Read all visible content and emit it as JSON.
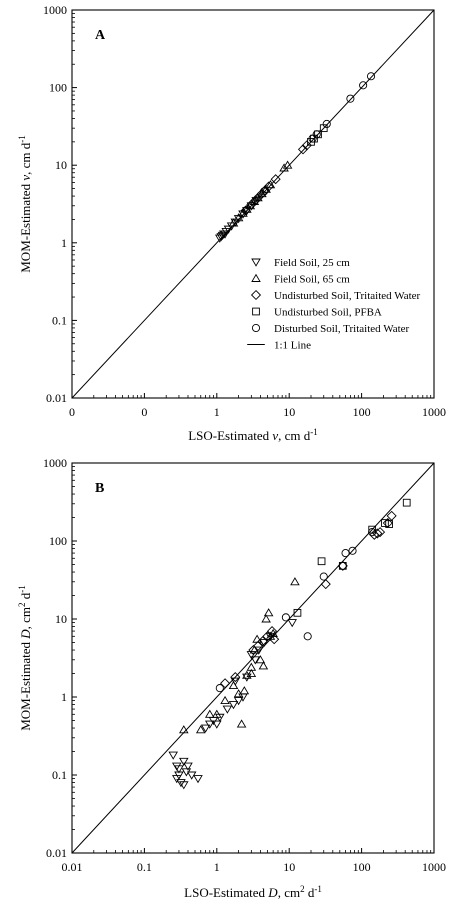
{
  "chart_data": [
    {
      "type": "scatter",
      "panel_label": "A",
      "xlabel": "LSO-Estimated v, cm d",
      "xlabel_parts": {
        "pre": "LSO-Estimated ",
        "italic": "v",
        "post": ", cm d",
        "sup": "-1"
      },
      "ylabel": "MOM-Estimated v, cm d",
      "ylabel_parts": {
        "pre": "MOM-Estimated ",
        "italic": "v",
        "post": ", cm d",
        "sup": "-1"
      },
      "scale": "log",
      "xticks": [
        "0",
        "0",
        "1",
        "10",
        "100",
        "1000"
      ],
      "yticks": [
        "0.01",
        "0.1",
        "1",
        "10",
        "100",
        "1000"
      ],
      "xlim": [
        0.01,
        1000
      ],
      "ylim": [
        0.01,
        1000
      ],
      "legend_position": "bottom-right",
      "legend": [
        {
          "label": "Field Soil, 25 cm",
          "marker": "triangle-down"
        },
        {
          "label": "Field Soil, 65 cm",
          "marker": "triangle-up"
        },
        {
          "label": "Undisturbed Soil, Tritaited Water",
          "marker": "diamond"
        },
        {
          "label": "Undisturbed Soil, PFBA",
          "marker": "square"
        },
        {
          "label": "Disturbed Soil, Tritaited Water",
          "marker": "circle"
        },
        {
          "label": "1:1 Line",
          "marker": "line"
        }
      ],
      "series": [
        {
          "name": "Field Soil, 25 cm",
          "marker": "triangle-down",
          "points": [
            [
              1.1,
              1.15
            ],
            [
              1.15,
              1.2
            ],
            [
              1.2,
              1.25
            ],
            [
              1.25,
              1.3
            ],
            [
              1.3,
              1.3
            ],
            [
              1.35,
              1.4
            ],
            [
              1.45,
              1.5
            ],
            [
              1.6,
              1.65
            ],
            [
              1.8,
              1.85
            ],
            [
              2.0,
              2.05
            ],
            [
              2.3,
              2.35
            ],
            [
              2.6,
              2.6
            ],
            [
              3.0,
              3.0
            ],
            [
              3.5,
              3.5
            ]
          ]
        },
        {
          "name": "Field Soil, 65 cm",
          "marker": "triangle-up",
          "points": [
            [
              1.7,
              1.8
            ],
            [
              2.0,
              2.1
            ],
            [
              2.3,
              2.4
            ],
            [
              2.6,
              2.7
            ],
            [
              2.9,
              3.0
            ],
            [
              3.3,
              3.4
            ],
            [
              3.7,
              3.8
            ],
            [
              4.2,
              4.3
            ],
            [
              4.8,
              4.9
            ],
            [
              5.5,
              5.6
            ],
            [
              8.5,
              9.2
            ],
            [
              9.5,
              10.0
            ]
          ]
        },
        {
          "name": "Undisturbed Soil, Tritaited Water",
          "marker": "diamond",
          "points": [
            [
              2.5,
              2.6
            ],
            [
              3.0,
              3.1
            ],
            [
              3.4,
              3.5
            ],
            [
              3.8,
              3.9
            ],
            [
              4.2,
              4.3
            ],
            [
              4.6,
              4.7
            ],
            [
              5.2,
              5.3
            ],
            [
              6.5,
              6.6
            ],
            [
              15.5,
              16.0
            ],
            [
              17.5,
              18.0
            ]
          ]
        },
        {
          "name": "Undisturbed Soil, PFBA",
          "marker": "square",
          "points": [
            [
              20.0,
              20.0
            ],
            [
              22.0,
              22.0
            ],
            [
              25.0,
              25.0
            ],
            [
              30.0,
              30.0
            ]
          ]
        },
        {
          "name": "Disturbed Soil, Tritaited Water",
          "marker": "circle",
          "points": [
            [
              4.5,
              4.6
            ],
            [
              21.0,
              22.0
            ],
            [
              24.0,
              25.0
            ],
            [
              33.0,
              34.0
            ],
            [
              70.0,
              72.0
            ],
            [
              105.0,
              107.0
            ],
            [
              135.0,
              140.0
            ]
          ]
        }
      ]
    },
    {
      "type": "scatter",
      "panel_label": "B",
      "xlabel": "LSO-Estimated D, cm2 d",
      "xlabel_parts": {
        "pre": "LSO-Estimated ",
        "italic": "D",
        "post": ", cm",
        "sup2": "2",
        "post2": " d",
        "sup": "-1"
      },
      "ylabel": "MOM-Estimated D, cm2 d",
      "ylabel_parts": {
        "pre": "MOM-Estimated ",
        "italic": "D",
        "post": ", cm",
        "sup2": "2",
        "post2": " d",
        "sup": "-1"
      },
      "scale": "log",
      "xticks": [
        "0.01",
        "0.1",
        "1",
        "10",
        "100",
        "1000"
      ],
      "yticks": [
        "0.01",
        "0.1",
        "1",
        "10",
        "100",
        "1000"
      ],
      "xlim": [
        0.01,
        1000
      ],
      "ylim": [
        0.01,
        1000
      ],
      "series": [
        {
          "name": "Field Soil, 25 cm",
          "marker": "triangle-down",
          "points": [
            [
              0.25,
              0.18
            ],
            [
              0.28,
              0.13
            ],
            [
              0.3,
              0.1
            ],
            [
              0.32,
              0.08
            ],
            [
              0.35,
              0.075
            ],
            [
              0.3,
              0.12
            ],
            [
              0.38,
              0.11
            ],
            [
              0.4,
              0.13
            ],
            [
              0.45,
              0.1
            ],
            [
              0.55,
              0.09
            ],
            [
              0.28,
              0.09
            ],
            [
              0.35,
              0.15
            ],
            [
              0.7,
              0.4
            ],
            [
              0.8,
              0.45
            ],
            [
              0.9,
              0.5
            ],
            [
              1.0,
              0.45
            ],
            [
              1.1,
              0.55
            ],
            [
              1.4,
              0.7
            ],
            [
              1.7,
              0.8
            ],
            [
              2.0,
              0.9
            ],
            [
              2.3,
              1.0
            ],
            [
              1.8,
              1.6
            ],
            [
              2.6,
              1.8
            ],
            [
              3.0,
              3.5
            ],
            [
              3.4,
              3.0
            ],
            [
              3.8,
              4.0
            ],
            [
              4.5,
              5.0
            ],
            [
              5.5,
              6.0
            ],
            [
              11.0,
              9.0
            ]
          ]
        },
        {
          "name": "Field Soil, 65 cm",
          "marker": "triangle-up",
          "points": [
            [
              0.35,
              0.38
            ],
            [
              0.6,
              0.38
            ],
            [
              0.8,
              0.6
            ],
            [
              1.0,
              0.6
            ],
            [
              1.3,
              0.9
            ],
            [
              1.7,
              1.4
            ],
            [
              2.0,
              1.1
            ],
            [
              2.2,
              0.45
            ],
            [
              2.4,
              1.2
            ],
            [
              2.6,
              1.9
            ],
            [
              3.0,
              2.4
            ],
            [
              3.3,
              4.0
            ],
            [
              3.6,
              5.5
            ],
            [
              4.0,
              3.0
            ],
            [
              4.4,
              2.5
            ],
            [
              4.8,
              10.0
            ],
            [
              5.2,
              12.0
            ],
            [
              5.5,
              6.0
            ],
            [
              6.0,
              6.5
            ],
            [
              12.0,
              30.0
            ],
            [
              3.0,
              2.0
            ]
          ]
        },
        {
          "name": "Undisturbed Soil, Tritaited Water",
          "marker": "diamond",
          "points": [
            [
              1.3,
              1.5
            ],
            [
              1.8,
              1.8
            ],
            [
              3.2,
              4.0
            ],
            [
              3.7,
              4.5
            ],
            [
              4.3,
              5.2
            ],
            [
              5.0,
              6.0
            ],
            [
              5.8,
              7.0
            ],
            [
              6.2,
              5.5
            ],
            [
              32.0,
              28.0
            ],
            [
              165.0,
              125.0
            ],
            [
              180.0,
              130.0
            ],
            [
              230.0,
              170.0
            ],
            [
              260.0,
              210.0
            ],
            [
              55.0,
              48.0
            ],
            [
              150.0,
              120.0
            ]
          ]
        },
        {
          "name": "Undisturbed Soil, PFBA",
          "marker": "square",
          "points": [
            [
              13.0,
              12.0
            ],
            [
              28.0,
              55.0
            ],
            [
              55.0,
              48.0
            ],
            [
              140.0,
              140.0
            ],
            [
              210.0,
              170.0
            ],
            [
              240.0,
              165.0
            ],
            [
              420.0,
              310.0
            ]
          ]
        },
        {
          "name": "Disturbed Soil, Tritaited Water",
          "marker": "circle",
          "points": [
            [
              1.1,
              1.3
            ],
            [
              9.0,
              10.5
            ],
            [
              18.0,
              6.0
            ],
            [
              30.0,
              35.0
            ],
            [
              55.0,
              48.0
            ],
            [
              60.0,
              70.0
            ],
            [
              75.0,
              75.0
            ],
            [
              140.0,
              130.0
            ]
          ]
        }
      ]
    }
  ]
}
